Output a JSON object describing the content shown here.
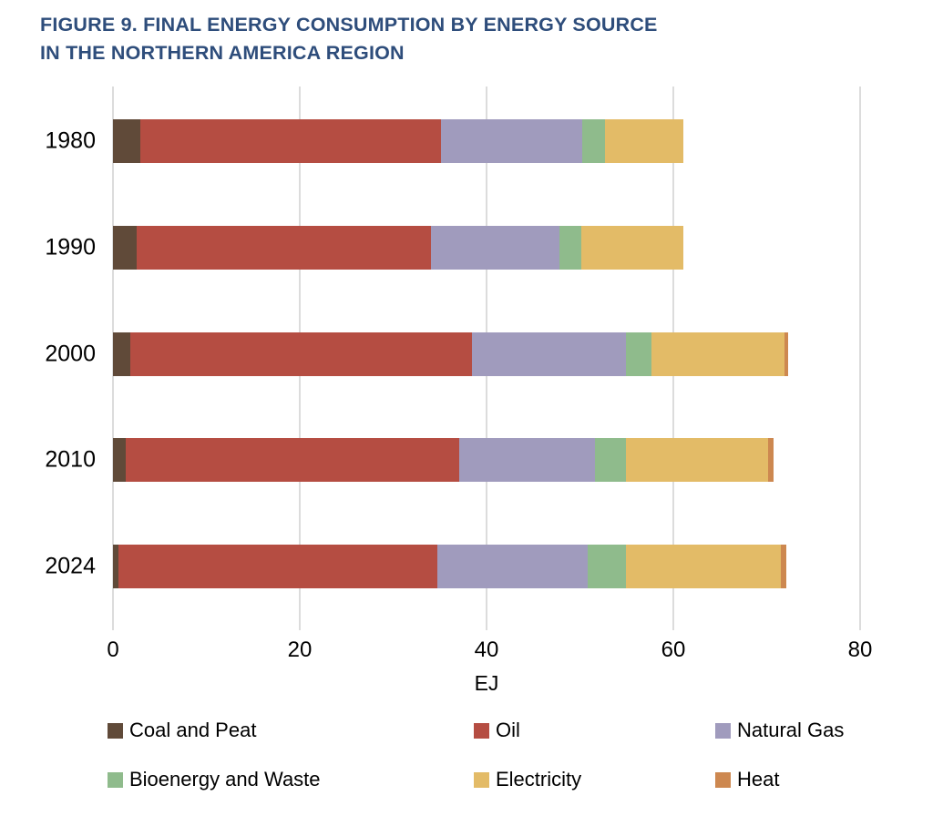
{
  "header": {
    "line1": "FIGURE 9. FINAL ENERGY CONSUMPTION BY ENERGY SOURCE",
    "line2": "IN THE NORTHERN AMERICA REGION"
  },
  "colors": {
    "title_text": "#2e4d7b",
    "gridline": "#dcdcdc",
    "axis_text": "#000000"
  },
  "chart_data": {
    "type": "stacked_bar_horizontal",
    "title": "FIGURE 9. FINAL ENERGY CONSUMPTION BY ENERGY SOURCE IN THE NORTHERN AMERICA REGION",
    "xlabel": "EJ",
    "xlim": [
      0,
      80
    ],
    "xticks": [
      0,
      20,
      40,
      60,
      80
    ],
    "grid": "vertical",
    "legend_position": "bottom",
    "categories": [
      "1980",
      "1990",
      "2000",
      "2010",
      "2024"
    ],
    "series": [
      {
        "name": "Coal and Peat",
        "color": "#604a39",
        "values": [
          2.9,
          2.5,
          1.9,
          1.4,
          0.6
        ]
      },
      {
        "name": "Oil",
        "color": "#b54d42",
        "values": [
          32.2,
          31.5,
          36.5,
          35.7,
          34.1
        ]
      },
      {
        "name": "Natural Gas",
        "color": "#a09bbd",
        "values": [
          15.1,
          13.8,
          16.5,
          14.5,
          16.1
        ]
      },
      {
        "name": "Bioenergy and Waste",
        "color": "#8fbb8c",
        "values": [
          2.5,
          2.3,
          2.8,
          3.3,
          4.1
        ]
      },
      {
        "name": "Electricity",
        "color": "#e3bb67",
        "values": [
          8.4,
          11.0,
          14.2,
          15.2,
          16.6
        ]
      },
      {
        "name": "Heat",
        "color": "#cd8850",
        "values": [
          0.0,
          0.0,
          0.4,
          0.6,
          0.6
        ]
      }
    ],
    "totals": [
      61.1,
      61.1,
      72.3,
      70.7,
      72.1
    ]
  }
}
